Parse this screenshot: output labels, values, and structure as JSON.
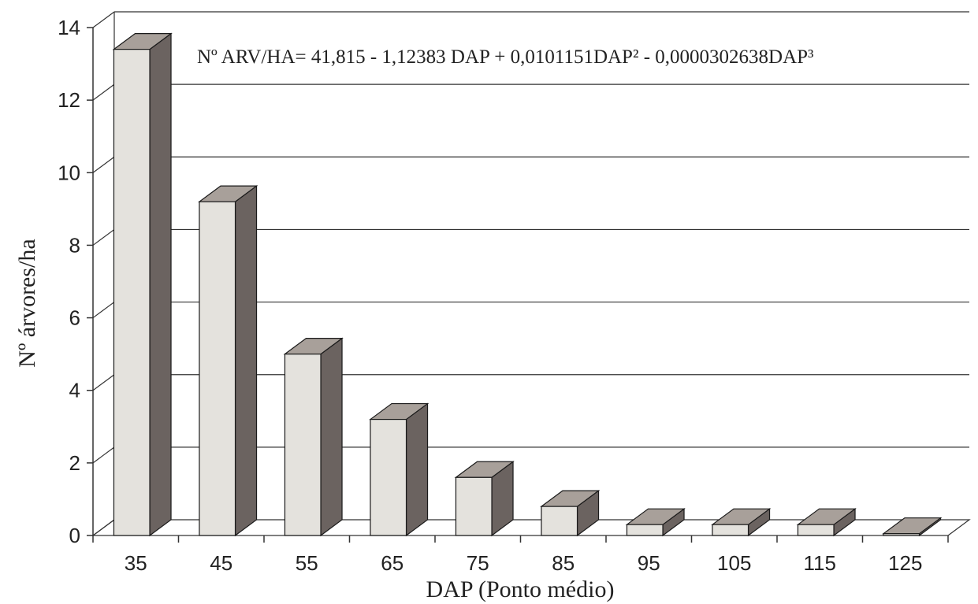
{
  "chart_data": {
    "type": "bar",
    "categories": [
      "35",
      "45",
      "55",
      "65",
      "75",
      "85",
      "95",
      "105",
      "115",
      "125"
    ],
    "values": [
      13.4,
      9.2,
      5.0,
      3.2,
      1.6,
      0.8,
      0.3,
      0.3,
      0.3,
      0.05
    ],
    "ylim": [
      0,
      14
    ],
    "yticks": [
      0,
      2,
      4,
      6,
      8,
      10,
      12,
      14
    ],
    "xlabel": "DAP (Ponto médio)",
    "ylabel": "Nº árvores/ha",
    "annotation": "Nº ARV/HA= 41,815 - 1,12383 DAP + 0,0101151DAP² - 0,0000302638DAP³",
    "grid": true,
    "colors": {
      "bar_front": "#e4e2dd",
      "bar_side": "#6b6360",
      "bar_top": "#a8a09a",
      "grid": "#333333"
    }
  }
}
